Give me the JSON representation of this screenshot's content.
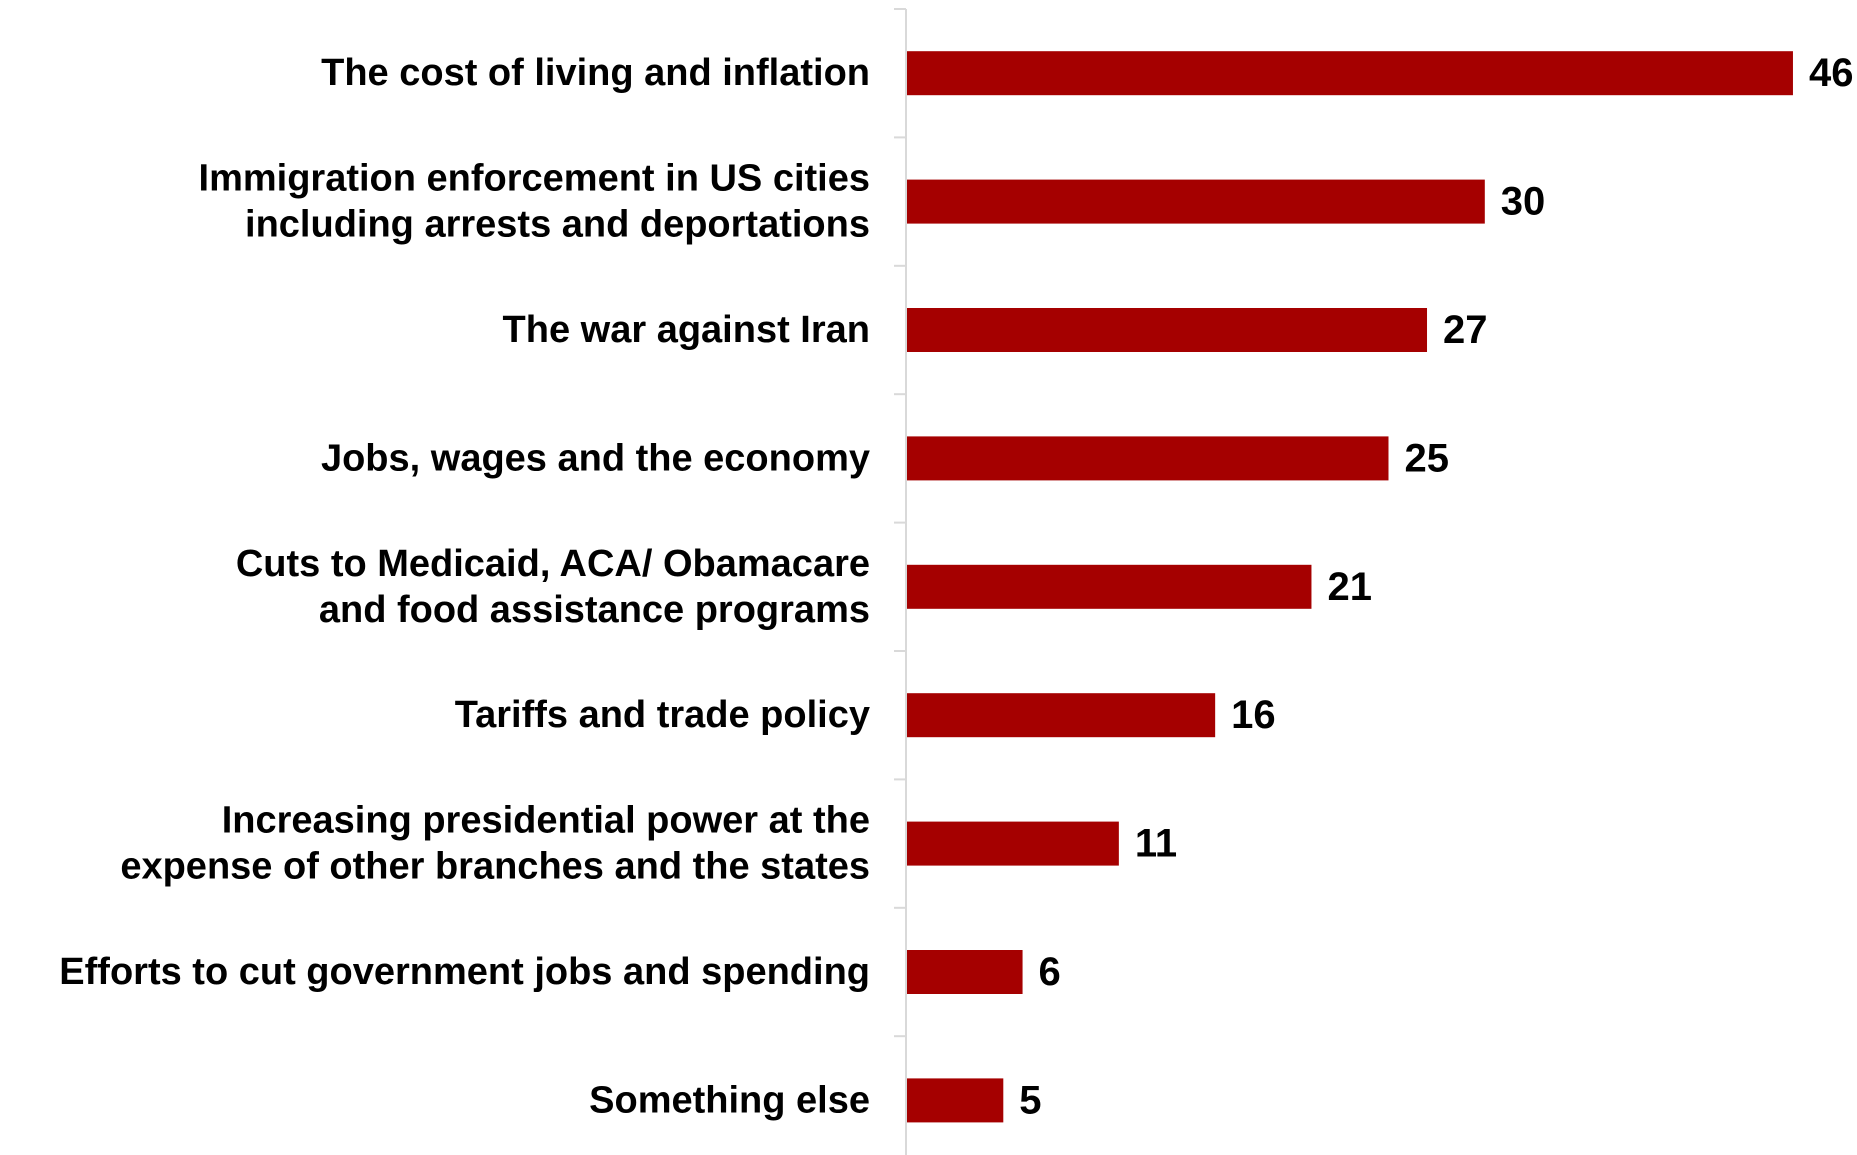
{
  "chart_data": {
    "type": "bar",
    "orientation": "horizontal",
    "categories": [
      [
        "The cost of living and inflation"
      ],
      [
        "Immigration enforcement in US cities",
        "including arrests and deportations"
      ],
      [
        "The war against Iran"
      ],
      [
        "Jobs, wages and the economy"
      ],
      [
        "Cuts to Medicaid, ACA/ Obamacare",
        "and food assistance programs"
      ],
      [
        "Tariffs and trade policy"
      ],
      [
        "Increasing presidential power at the",
        "expense of other branches and the states"
      ],
      [
        "Efforts to cut government jobs and spending"
      ],
      [
        "Something else"
      ]
    ],
    "values": [
      46,
      30,
      27,
      25,
      21,
      16,
      11,
      6,
      5
    ],
    "value_labels": [
      "46",
      "30",
      "27",
      "25",
      "21",
      "16",
      "11",
      "6",
      "5"
    ],
    "title": "",
    "xlabel": "",
    "ylabel": "",
    "xlim": [
      0,
      46
    ],
    "grid": false,
    "legend": "none",
    "bar_color": "#a50000",
    "axis_color": "#d9d9d9"
  }
}
